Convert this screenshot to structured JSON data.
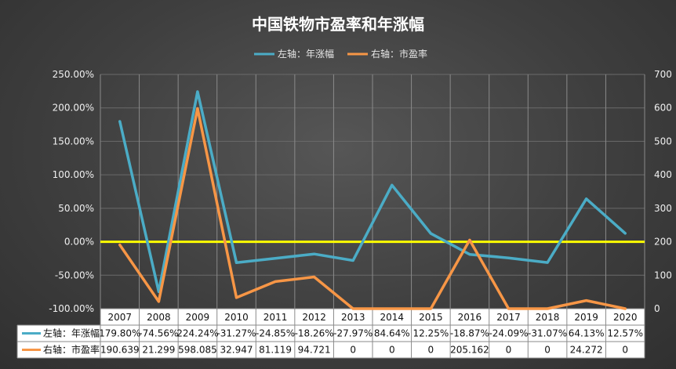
{
  "chart_data": {
    "type": "line",
    "title": "中国铁物市盈率和年涨幅",
    "categories": [
      "2007",
      "2008",
      "2009",
      "2010",
      "2011",
      "2012",
      "2013",
      "2014",
      "2015",
      "2016",
      "2017",
      "2018",
      "2019",
      "2020"
    ],
    "series": [
      {
        "name": "左轴：年涨幅",
        "axis": "left",
        "color": "#4bacc6",
        "values": [
          179.8,
          -74.56,
          224.24,
          -31.27,
          -24.85,
          -18.26,
          -27.97,
          84.64,
          12.25,
          -18.87,
          -24.09,
          -31.07,
          64.13,
          12.57
        ],
        "labels": [
          "179.80%",
          "-74.56%",
          "224.24%",
          "-31.27%",
          "-24.85%",
          "-18.26%",
          "-27.97%",
          "84.64%",
          "12.25%",
          "-18.87%",
          "-24.09%",
          "-31.07%",
          "64.13%",
          "12.57%"
        ]
      },
      {
        "name": "右轴：市盈率",
        "axis": "right",
        "color": "#f79646",
        "values": [
          190.639,
          21.299,
          598.085,
          32.947,
          81.119,
          94.721,
          0,
          0,
          0,
          205.162,
          0,
          0,
          24.272,
          0
        ],
        "labels": [
          "190.639",
          "21.299",
          "598.085",
          "32.947",
          "81.119",
          "94.721",
          "0",
          "0",
          "0",
          "205.162",
          "0",
          "0",
          "24.272",
          "0"
        ]
      }
    ],
    "y_left": {
      "ylim": [
        -100,
        250
      ],
      "ticks": [
        250,
        200,
        150,
        100,
        50,
        0,
        -50,
        -100
      ],
      "tick_labels": [
        "250.00%",
        "200.00%",
        "150.00%",
        "100.00%",
        "50.00%",
        "0.00%",
        "-50.00%",
        "-100.00%"
      ]
    },
    "y_right": {
      "ylim": [
        0,
        700
      ],
      "ticks": [
        700,
        600,
        500,
        400,
        300,
        200,
        100,
        0
      ],
      "tick_labels": [
        "700",
        "600",
        "500",
        "400",
        "300",
        "200",
        "100",
        "0"
      ]
    },
    "zero_line_color": "#ffff00",
    "grid": true,
    "legend_position": "top",
    "data_table": true
  }
}
